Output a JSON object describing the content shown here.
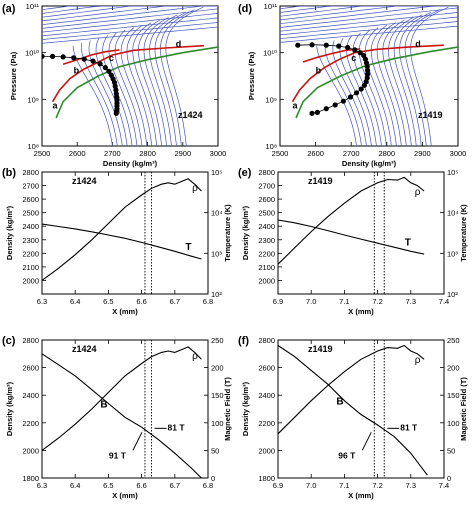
{
  "chart_data": [
    {
      "panel": "(a)",
      "type": "line",
      "tag": "z1424",
      "xlabel": "Density (kg/m³)",
      "ylabel": "Pressure (Pa)",
      "xlim": [
        2500,
        3000
      ],
      "ylim_log10": [
        8,
        11
      ],
      "yscale": "log",
      "xticks": [
        "2500",
        "2600",
        "2700",
        "2800",
        "2900",
        "3000"
      ],
      "yticks": [
        "10⁸",
        "10⁹",
        "10¹⁰",
        "10¹¹"
      ],
      "point_labels": [
        "a",
        "b",
        "c",
        "d"
      ],
      "dots_log10P": {
        "x": [
          2500,
          2530,
          2560,
          2590,
          2620,
          2645,
          2665,
          2680,
          2690,
          2697,
          2702,
          2706,
          2708,
          2710,
          2711,
          2712,
          2713,
          2713,
          2713,
          2713,
          2712,
          2711
        ],
        "y": [
          9.92,
          9.92,
          9.91,
          9.89,
          9.86,
          9.82,
          9.76,
          9.68,
          9.6,
          9.52,
          9.44,
          9.36,
          9.28,
          9.2,
          9.12,
          9.05,
          8.98,
          8.92,
          8.86,
          8.8,
          8.75,
          8.7
        ]
      }
    },
    {
      "panel": "(d)",
      "type": "line",
      "tag": "z1419",
      "xlabel": "Density (kg/m³)",
      "ylabel": "Pressure (Pa)",
      "xlim": [
        2500,
        3000
      ],
      "ylim_log10": [
        8,
        11
      ],
      "yscale": "log",
      "xticks": [
        "2500",
        "2600",
        "2700",
        "2800",
        "2900",
        "3000"
      ],
      "yticks": [
        "10⁸",
        "10⁹",
        "10¹⁰",
        "10¹¹"
      ],
      "point_labels": [
        "a",
        "b",
        "c",
        "d"
      ],
      "dots_log10P": {
        "x": [
          2550,
          2590,
          2630,
          2665,
          2690,
          2710,
          2725,
          2735,
          2740,
          2743,
          2745,
          2746,
          2746,
          2745,
          2742,
          2737,
          2728,
          2715,
          2698,
          2678,
          2655,
          2630,
          2605,
          2590
        ],
        "y": [
          10.16,
          10.17,
          10.16,
          10.14,
          10.11,
          10.06,
          10.0,
          9.94,
          9.86,
          9.78,
          9.7,
          9.62,
          9.54,
          9.46,
          9.38,
          9.3,
          9.22,
          9.14,
          9.05,
          8.96,
          8.88,
          8.8,
          8.72,
          8.7
        ]
      }
    },
    {
      "panel": "(b)",
      "type": "line",
      "tag": "z1424",
      "xlabel": "X (mm)",
      "ylabel": "Density (kg/m³)",
      "y2label": "Temperature (K)",
      "xlim": [
        6.3,
        6.8
      ],
      "ylim": [
        1900,
        2800
      ],
      "y2scale": "log",
      "y2lim_log10": [
        2,
        5
      ],
      "xticks": [
        "6.3",
        "6.4",
        "6.5",
        "6.6",
        "6.7",
        "6.8"
      ],
      "yticks": [
        "2000",
        "2100",
        "2200",
        "2300",
        "2400",
        "2500",
        "2600",
        "2700",
        "2800"
      ],
      "y2ticks": [
        "10²",
        "10³",
        "10⁴",
        "10⁵"
      ],
      "series": [
        {
          "name": "ρ",
          "x": [
            6.3,
            6.35,
            6.4,
            6.45,
            6.5,
            6.55,
            6.6,
            6.63,
            6.66,
            6.68,
            6.7,
            6.72,
            6.74,
            6.76,
            6.78
          ],
          "y": [
            2000,
            2090,
            2190,
            2300,
            2420,
            2540,
            2630,
            2680,
            2710,
            2720,
            2710,
            2730,
            2750,
            2710,
            2660
          ]
        },
        {
          "name": "T",
          "x": [
            6.3,
            6.35,
            6.4,
            6.45,
            6.5,
            6.55,
            6.6,
            6.65,
            6.7,
            6.75,
            6.78
          ],
          "y_log10": [
            3.72,
            3.66,
            3.6,
            3.53,
            3.45,
            3.37,
            3.27,
            3.16,
            3.05,
            2.93,
            2.86
          ]
        }
      ],
      "vlines": [
        6.61,
        6.63
      ]
    },
    {
      "panel": "(e)",
      "type": "line",
      "tag": "z1419",
      "xlabel": "X (mm)",
      "ylabel": "Density (kg/m³)",
      "y2label": "Temperature (K)",
      "xlim": [
        6.9,
        7.4
      ],
      "ylim": [
        1900,
        2800
      ],
      "y2scale": "log",
      "y2lim_log10": [
        2,
        5
      ],
      "xticks": [
        "6.9",
        "7.0",
        "7.1",
        "7.2",
        "7.3",
        "7.4"
      ],
      "yticks": [
        "2000",
        "2100",
        "2200",
        "2300",
        "2400",
        "2500",
        "2600",
        "2700",
        "2800"
      ],
      "y2ticks": [
        "10²",
        "10³",
        "10⁴",
        "10⁵"
      ],
      "series": [
        {
          "name": "ρ",
          "x": [
            6.9,
            6.95,
            7.0,
            7.05,
            7.1,
            7.15,
            7.2,
            7.23,
            7.26,
            7.28,
            7.3,
            7.32,
            7.34
          ],
          "y": [
            2120,
            2240,
            2360,
            2470,
            2570,
            2660,
            2720,
            2745,
            2740,
            2760,
            2720,
            2700,
            2660
          ]
        },
        {
          "name": "T",
          "x": [
            6.9,
            6.95,
            7.0,
            7.05,
            7.1,
            7.15,
            7.2,
            7.25,
            7.3,
            7.34
          ],
          "y_log10": [
            3.82,
            3.75,
            3.66,
            3.56,
            3.45,
            3.35,
            3.25,
            3.15,
            3.05,
            2.98
          ]
        }
      ],
      "vlines": [
        7.19,
        7.22
      ]
    },
    {
      "panel": "(c)",
      "type": "line",
      "tag": "z1424",
      "xlabel": "X (mm)",
      "ylabel": "Density (kg/m³)",
      "y2label": "Magnetic Field (T)",
      "xlim": [
        6.3,
        6.8
      ],
      "ylim": [
        1800,
        2800
      ],
      "y2lim": [
        0,
        250
      ],
      "xticks": [
        "6.3",
        "6.4",
        "6.5",
        "6.6",
        "6.7",
        "6.8"
      ],
      "yticks": [
        "1800",
        "2000",
        "2200",
        "2400",
        "2600",
        "2800"
      ],
      "y2ticks": [
        "0",
        "50",
        "100",
        "150",
        "200",
        "250"
      ],
      "series": [
        {
          "name": "ρ",
          "x": [
            6.3,
            6.35,
            6.4,
            6.45,
            6.5,
            6.55,
            6.6,
            6.63,
            6.66,
            6.68,
            6.7,
            6.72,
            6.74,
            6.76,
            6.78
          ],
          "y": [
            2000,
            2090,
            2190,
            2300,
            2420,
            2540,
            2630,
            2680,
            2710,
            2720,
            2710,
            2730,
            2750,
            2710,
            2660
          ]
        },
        {
          "name": "B",
          "x": [
            6.3,
            6.35,
            6.4,
            6.45,
            6.5,
            6.55,
            6.6,
            6.65,
            6.7,
            6.75,
            6.78
          ],
          "y": [
            225,
            205,
            185,
            160,
            135,
            110,
            92,
            70,
            45,
            18,
            0
          ]
        }
      ],
      "vlines": [
        6.61,
        6.63
      ],
      "annotations": [
        "91 T",
        "81 T"
      ]
    },
    {
      "panel": "(f)",
      "type": "line",
      "tag": "z1419",
      "xlabel": "X (mm)",
      "ylabel": "Density (kg/m³)",
      "y2label": "Magnetic Field (T)",
      "xlim": [
        6.9,
        7.4
      ],
      "ylim": [
        1800,
        2800
      ],
      "y2lim": [
        0,
        250
      ],
      "xticks": [
        "6.9",
        "7.0",
        "7.1",
        "7.2",
        "7.3",
        "7.4"
      ],
      "yticks": [
        "1800",
        "2000",
        "2200",
        "2400",
        "2600",
        "2800"
      ],
      "y2ticks": [
        "0",
        "50",
        "100",
        "150",
        "200",
        "250"
      ],
      "series": [
        {
          "name": "ρ",
          "x": [
            6.9,
            6.95,
            7.0,
            7.05,
            7.1,
            7.15,
            7.2,
            7.23,
            7.26,
            7.28,
            7.3,
            7.32,
            7.34
          ],
          "y": [
            2120,
            2240,
            2360,
            2470,
            2570,
            2660,
            2720,
            2745,
            2740,
            2760,
            2720,
            2700,
            2660
          ]
        },
        {
          "name": "B",
          "x": [
            6.9,
            6.95,
            7.0,
            7.05,
            7.1,
            7.15,
            7.2,
            7.25,
            7.3,
            7.35
          ],
          "y": [
            240,
            220,
            195,
            170,
            140,
            115,
            96,
            75,
            45,
            5
          ]
        }
      ],
      "vlines": [
        7.19,
        7.22
      ],
      "annotations": [
        "96 T",
        "81 T"
      ]
    }
  ]
}
